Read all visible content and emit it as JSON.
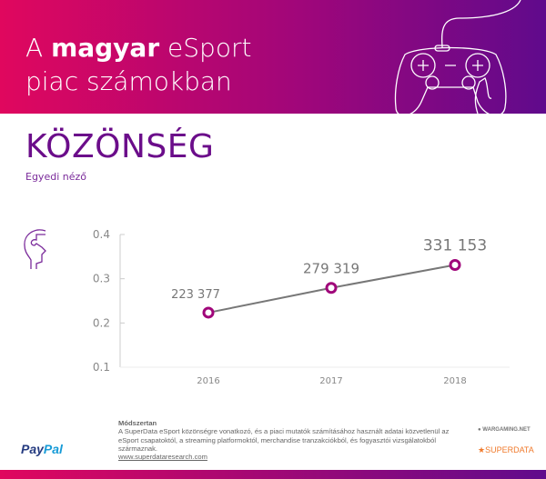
{
  "header": {
    "title_pre": "A ",
    "title_bold": "magyar",
    "title_post": " eSport",
    "title_line2": "piac számokban"
  },
  "section_title": "KÖZÖNSÉG",
  "subtitle": "Egyedi néző",
  "colors": {
    "accent": "#6b0d8a",
    "marker": "#a0067a",
    "line": "#777777",
    "gradient_start": "#e0075e",
    "gradient_end": "#600a8c"
  },
  "chart_data": {
    "type": "line",
    "categories": [
      "2016",
      "2017",
      "2018"
    ],
    "values": [
      0.223377,
      0.279319,
      0.331153
    ],
    "data_labels": [
      "223 377",
      "279 319",
      "331 153"
    ],
    "yticks": [
      "0.4",
      "0.3",
      "0.2",
      "0.1"
    ],
    "ylim": [
      0.1,
      0.4
    ],
    "grid": false
  },
  "methodology": {
    "heading": "Módszertan",
    "text": "A SuperData eSport közönségre vonatkozó, és a piaci mutatók számításához használt adatai közvetlenül az eSport csapatoktól, a streaming platformoktól, merchandise tranzakciókból, és fogyasztói vizsgálatokból származnak.",
    "link": "www.superdataresearch.com"
  },
  "logos": {
    "paypal_1": "Pay",
    "paypal_2": "Pal",
    "wargaming": "WARGAMING.NET",
    "superdata": "SUPERDATA"
  }
}
